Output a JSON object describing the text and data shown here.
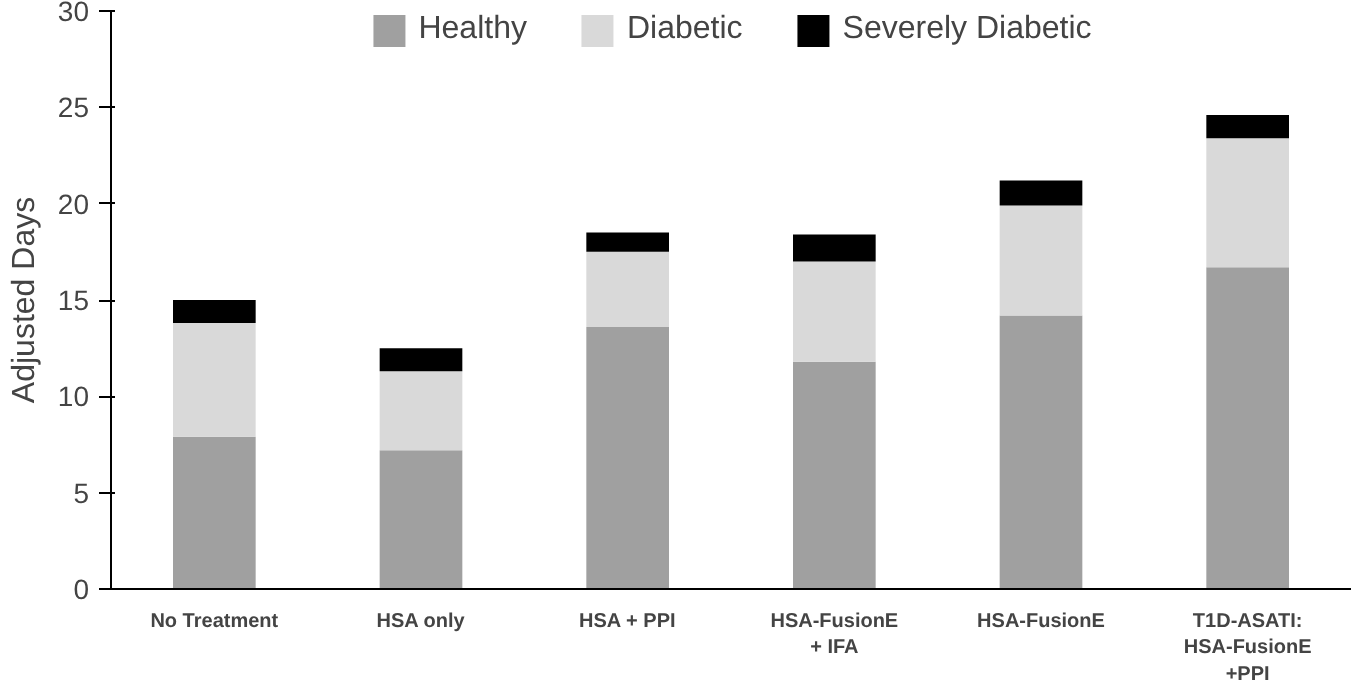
{
  "chart_data": {
    "type": "bar",
    "stacked": true,
    "ylabel": "Adjusted Days",
    "categories": [
      "No Treatment",
      "HSA only",
      "HSA + PPI",
      "HSA-FusionE\n+ IFA",
      "HSA-FusionE",
      "T1D-ASATI:\nHSA-FusionE\n+PPI"
    ],
    "series": [
      {
        "name": "Healthy",
        "color": "#a0a0a0",
        "values": [
          7.9,
          7.2,
          13.6,
          11.8,
          14.2,
          16.7
        ]
      },
      {
        "name": "Diabetic",
        "color": "#d9d9d9",
        "values": [
          5.9,
          4.1,
          3.9,
          5.2,
          5.7,
          6.7
        ]
      },
      {
        "name": "Severely Diabetic",
        "color": "#000000",
        "values": [
          1.2,
          1.2,
          1.0,
          1.4,
          1.3,
          1.2
        ]
      }
    ],
    "ylim": [
      0,
      30
    ],
    "yticks": [
      0,
      5,
      10,
      15,
      20,
      25,
      30
    ],
    "grid": false,
    "legend": "top"
  }
}
